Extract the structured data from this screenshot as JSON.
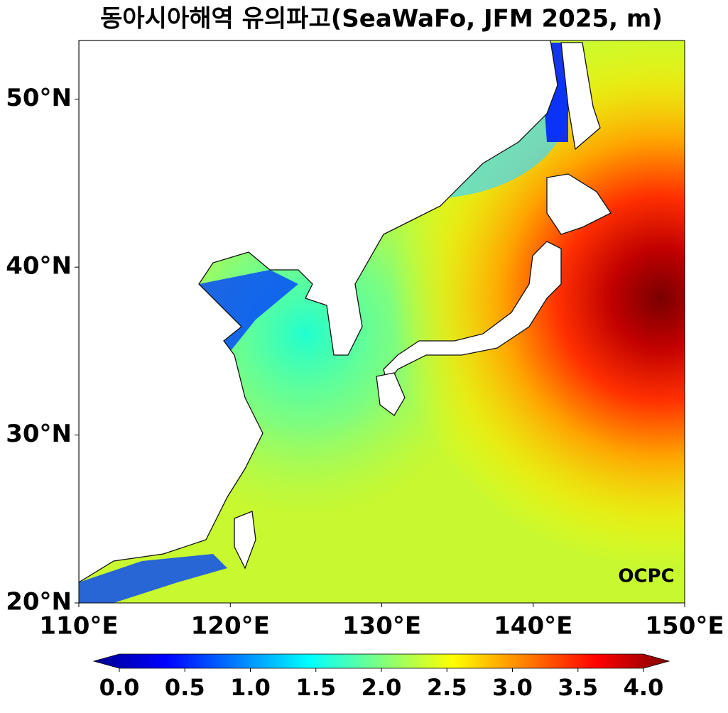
{
  "chart_data": {
    "type": "map",
    "title": "동아시아해역 유의파고(SeaWaFo, JFM 2025, m)",
    "xlim": [
      110,
      150
    ],
    "ylim": [
      20,
      53.5
    ],
    "xticks": [
      {
        "value": 110,
        "label": "110°E"
      },
      {
        "value": 120,
        "label": "120°E"
      },
      {
        "value": 130,
        "label": "130°E"
      },
      {
        "value": 140,
        "label": "140°E"
      },
      {
        "value": 150,
        "label": "150°E"
      }
    ],
    "yticks": [
      {
        "value": 20,
        "label": "20°N"
      },
      {
        "value": 30,
        "label": "30°N"
      },
      {
        "value": 40,
        "label": "40°N"
      },
      {
        "value": 50,
        "label": "50°N"
      }
    ],
    "colorbar": {
      "lim": [
        0,
        4
      ],
      "colormap": "jet",
      "extend": "both",
      "ticks": [
        {
          "value": 0,
          "label": "0.0"
        },
        0.5,
        {
          "value": 1,
          "label": "1.0"
        },
        1.5,
        {
          "value": 2,
          "label": "2.0"
        },
        2.5,
        {
          "value": 3,
          "label": "3.0"
        },
        3.5,
        {
          "value": 4,
          "label": "4.0"
        }
      ]
    },
    "logo": "OCPC"
  }
}
